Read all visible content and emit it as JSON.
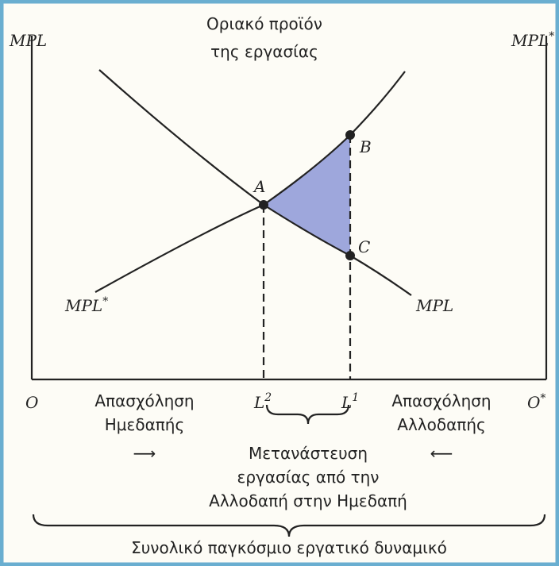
{
  "header": {
    "title_lines": [
      "Οριακό προϊόν",
      "της εργασίας"
    ]
  },
  "axes": {
    "left_label": "MPL",
    "right_label": {
      "text": "MPL",
      "sup": "*"
    },
    "origin_left": "O",
    "origin_right": {
      "text": "O",
      "sup": "*"
    }
  },
  "curves": {
    "mpl": {
      "label": "MPL"
    },
    "mpl_star": {
      "label": {
        "text": "MPL",
        "sup": "*"
      }
    }
  },
  "points": {
    "a": "A",
    "b": "B",
    "c": "C"
  },
  "x_marks": {
    "l2": {
      "text": "L",
      "sup": "2"
    },
    "l1": {
      "text": "L",
      "sup": "1"
    }
  },
  "home": {
    "lines": [
      "Απασχόληση",
      "Ημεδαπής"
    ],
    "arrow": "⟶"
  },
  "foreign": {
    "lines": [
      "Απασχόληση",
      "Αλλοδαπής"
    ],
    "arrow": "⟵"
  },
  "migration": {
    "lines": [
      "Μετανάστευση",
      "εργασίας από την",
      "Αλλοδαπή στην Ημεδαπή"
    ]
  },
  "total": "Συνολικό παγκόσμιο εργατικό δυναμικό"
}
